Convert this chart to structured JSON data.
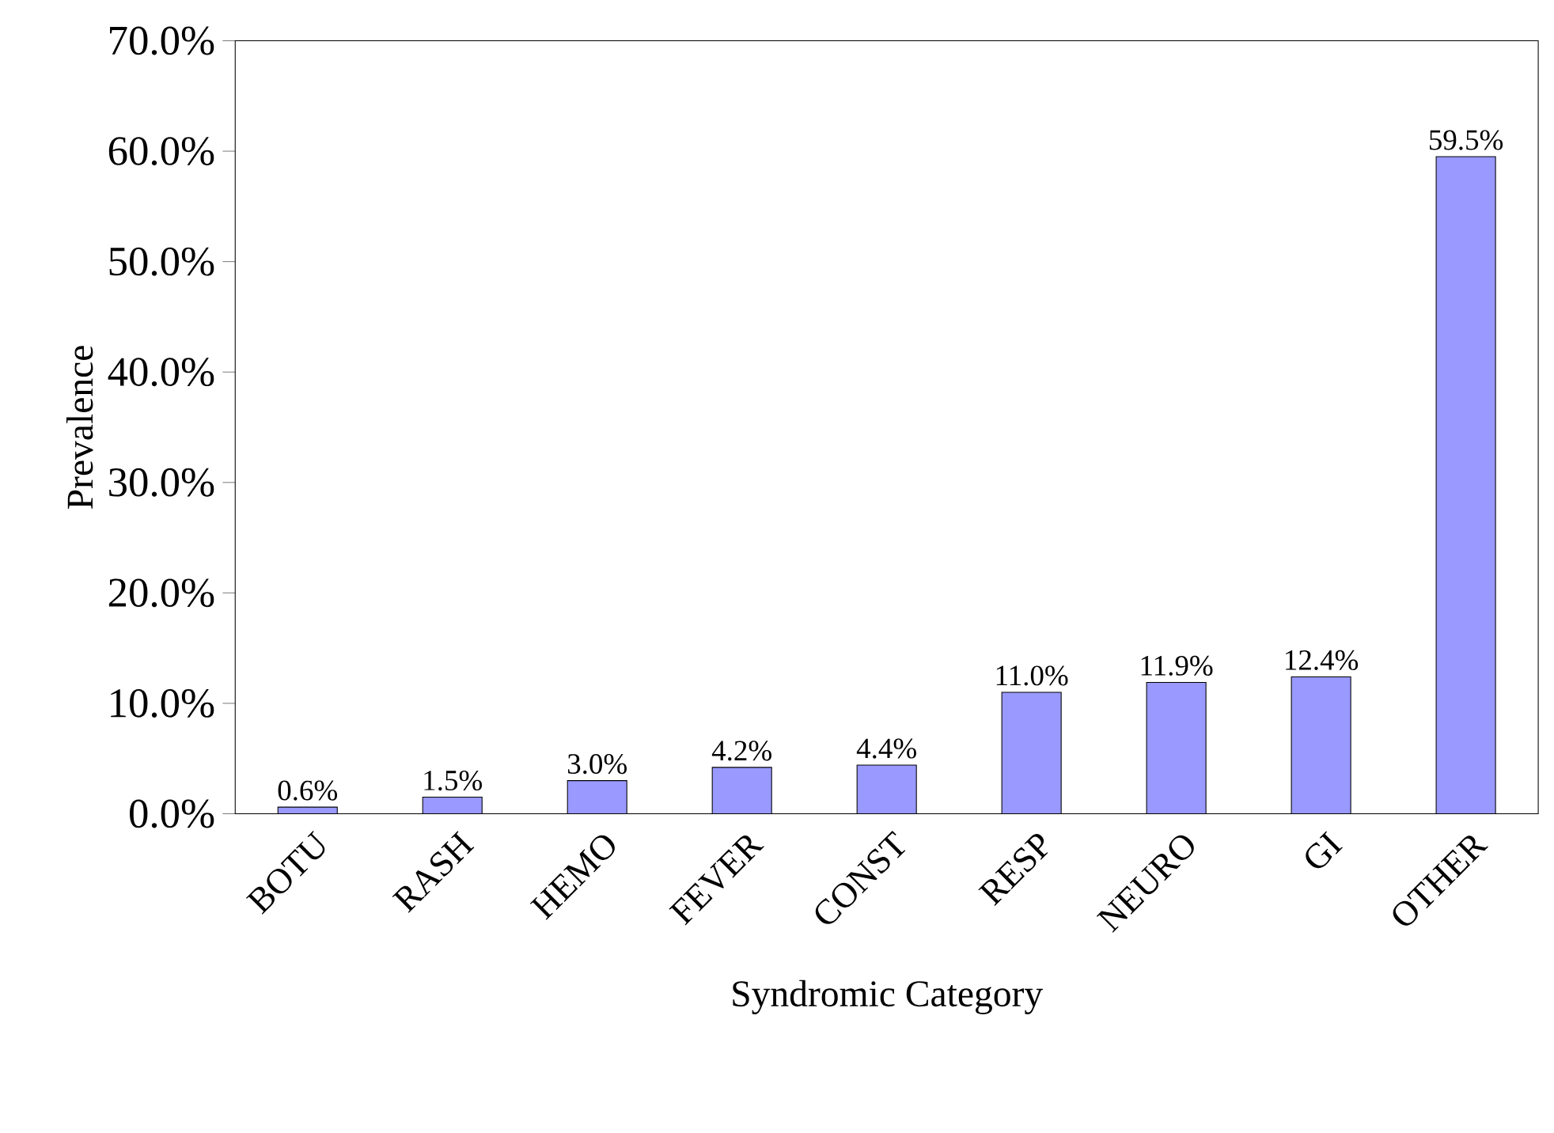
{
  "chart_data": {
    "type": "bar",
    "xlabel": "Syndromic Category",
    "ylabel": "Prevalence",
    "categories": [
      "BOTU",
      "RASH",
      "HEMO",
      "FEVER",
      "CONST",
      "RESP",
      "NEURO",
      "GI",
      "OTHER"
    ],
    "values": [
      0.6,
      1.5,
      3.0,
      4.2,
      4.4,
      11.0,
      11.9,
      12.4,
      59.5
    ],
    "value_labels": [
      "0.6%",
      "1.5%",
      "3.0%",
      "4.2%",
      "4.4%",
      "11.0%",
      "11.9%",
      "12.4%",
      "59.5%"
    ],
    "color": "#9999ff",
    "ylim": [
      0,
      70
    ],
    "yticks": [
      {
        "value": 0,
        "label": "0.0%"
      },
      {
        "value": 10,
        "label": "10.0%"
      },
      {
        "value": 20,
        "label": "20.0%"
      },
      {
        "value": 30,
        "label": "30.0%"
      },
      {
        "value": 40,
        "label": "40.0%"
      },
      {
        "value": 50,
        "label": "50.0%"
      },
      {
        "value": 60,
        "label": "60.0%"
      },
      {
        "value": 70,
        "label": "70.0%"
      }
    ]
  }
}
